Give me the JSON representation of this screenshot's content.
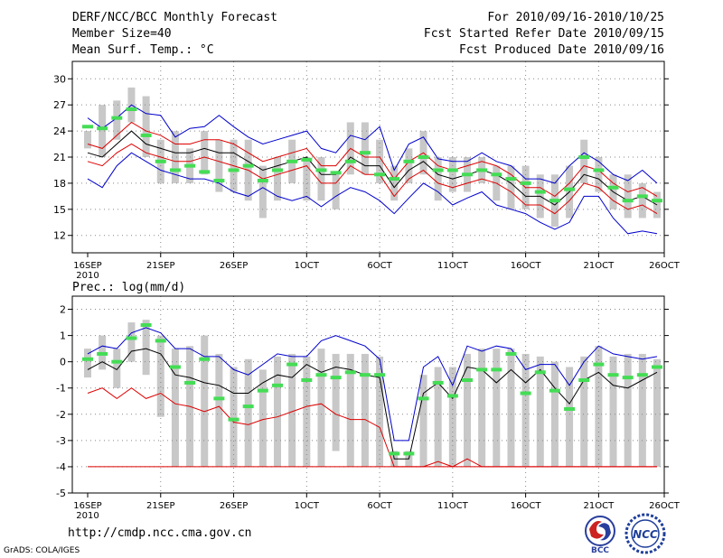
{
  "header": {
    "title": "DERF/NCC/BCC Monthly Forecast",
    "member_size": "Member Size=40",
    "variable": "Mean Surf. Temp.: °C",
    "forecast_period": "For 2010/09/16-2010/10/25",
    "started_refer": "Fcst Started Refer Date 2010/09/15",
    "produced": "Fcst Produced Date 2010/09/16"
  },
  "footer": {
    "url": "http://cmdp.ncc.cma.gov.cn",
    "credit": "GrADS: COLA/IGES"
  },
  "logos": {
    "bcc": "BCC",
    "ncc": "NCC"
  },
  "colors": {
    "upper": "#0000cc",
    "lower": "#dd0000",
    "mean": "#000000",
    "inner": "#dd0000",
    "obs": "#44dd55",
    "box": "#c8c8c8"
  },
  "chart_data": [
    {
      "type": "line",
      "title": "Mean Surf. Temp.: °C",
      "ylim": [
        10,
        32
      ],
      "yticks": [
        12,
        15,
        18,
        21,
        24,
        27,
        30
      ],
      "xlim": [
        0,
        39
      ],
      "xticks": [
        {
          "i": 0,
          "label": "16SEP",
          "sub": "2010"
        },
        {
          "i": 5,
          "label": "21SEP",
          "sub": ""
        },
        {
          "i": 10,
          "label": "26SEP",
          "sub": ""
        },
        {
          "i": 15,
          "label": "1OCT",
          "sub": ""
        },
        {
          "i": 20,
          "label": "6OCT",
          "sub": ""
        },
        {
          "i": 25,
          "label": "11OCT",
          "sub": ""
        },
        {
          "i": 30,
          "label": "16OCT",
          "sub": ""
        },
        {
          "i": 35,
          "label": "21OCT",
          "sub": ""
        },
        {
          "i": 40,
          "label": "26OCT",
          "sub": ""
        }
      ],
      "series": [
        {
          "name": "ensemble max",
          "values": [
            18.5,
            17.5,
            20,
            21.5,
            20.5,
            19.5,
            19,
            18.5,
            18.5,
            18,
            17,
            16.5,
            17.5,
            16.5,
            16,
            16.5,
            15.3,
            16.5,
            17.5,
            17,
            16,
            14.5,
            16.3,
            18,
            17,
            15.5,
            16.3,
            17,
            15.5,
            15,
            14.5,
            13.5,
            12.7,
            13.5,
            16.5,
            16.5,
            14,
            12.2,
            12.5,
            12.2
          ]
        },
        {
          "name": "ensemble min",
          "values": [
            25.5,
            24.3,
            25.5,
            27,
            26,
            25.8,
            23.3,
            24.3,
            24.5,
            25.8,
            24.5,
            23.3,
            22.5,
            23,
            23.5,
            24,
            22,
            21.5,
            23.5,
            23,
            24.5,
            19.5,
            22.5,
            23.3,
            20.8,
            20.5,
            20.5,
            21.5,
            20.5,
            20,
            18.5,
            18.5,
            18,
            20,
            21.5,
            20.5,
            19,
            18.3,
            19.5,
            18
          ]
        },
        {
          "name": "mean",
          "values": [
            21.5,
            21,
            22.5,
            24,
            22.5,
            22,
            21.5,
            21.5,
            22,
            21.5,
            21.5,
            20.5,
            19.5,
            20,
            20.5,
            21,
            19,
            19,
            21,
            20,
            20,
            17.5,
            19.5,
            20.5,
            19,
            18.5,
            19,
            19.5,
            19,
            18,
            16.5,
            16.5,
            15.5,
            17,
            19,
            18.5,
            17,
            16,
            16.5,
            15.5
          ]
        },
        {
          "name": "mean+sd",
          "values": [
            22.5,
            22,
            23.5,
            25,
            24,
            23.5,
            22.5,
            22.5,
            23,
            23,
            22.5,
            21.5,
            20.5,
            21,
            21.5,
            22,
            20,
            20,
            22,
            21,
            21,
            18.5,
            20.5,
            21.5,
            20,
            19.5,
            20,
            20.5,
            20,
            19,
            17.5,
            17.5,
            16.5,
            18,
            20,
            19.5,
            18,
            17,
            17.5,
            16.5
          ]
        },
        {
          "name": "mean-sd",
          "values": [
            20.5,
            20,
            21.5,
            22.5,
            21.5,
            21,
            20.5,
            20.5,
            21,
            20.5,
            20,
            19.5,
            18.5,
            19,
            19.5,
            20,
            18,
            18,
            20,
            19,
            19,
            16.5,
            18.5,
            19.5,
            18,
            17.5,
            18,
            18.5,
            18,
            17,
            15.5,
            15.5,
            14.5,
            16,
            18,
            17.5,
            16,
            15,
            15.5,
            14.5
          ]
        }
      ],
      "boxes": [
        [
          24,
          22
        ],
        [
          27,
          21
        ],
        [
          27.5,
          23
        ],
        [
          29,
          25
        ],
        [
          28,
          21
        ],
        [
          23,
          18
        ],
        [
          24,
          18
        ],
        [
          22,
          18
        ],
        [
          24,
          19
        ],
        [
          23,
          17
        ],
        [
          23,
          17
        ],
        [
          23,
          16
        ],
        [
          20,
          14
        ],
        [
          21,
          16
        ],
        [
          23,
          18
        ],
        [
          21,
          16
        ],
        [
          21,
          16
        ],
        [
          19,
          15
        ],
        [
          25,
          19
        ],
        [
          25,
          19
        ],
        [
          23,
          18
        ],
        [
          20,
          16
        ],
        [
          22,
          18
        ],
        [
          24,
          19
        ],
        [
          21,
          16
        ],
        [
          21,
          17
        ],
        [
          21,
          17
        ],
        [
          21,
          18
        ],
        [
          20,
          16
        ],
        [
          20,
          15
        ],
        [
          20,
          15
        ],
        [
          19,
          14
        ],
        [
          19,
          13
        ],
        [
          20,
          14
        ],
        [
          23,
          18
        ],
        [
          21,
          17
        ],
        [
          19,
          15
        ],
        [
          19,
          14
        ],
        [
          18,
          14
        ],
        [
          17,
          14
        ]
      ],
      "observed": [
        24.5,
        24.3,
        25.5,
        26.5,
        23.5,
        20.5,
        19.5,
        20,
        19.3,
        18.3,
        19.5,
        20,
        18.3,
        19.5,
        20.5,
        20.7,
        19.5,
        19.2,
        20.5,
        21.5,
        19,
        18.5,
        20.5,
        21,
        19.5,
        19.5,
        19,
        19.5,
        19,
        18.5,
        18,
        17,
        16,
        17.3,
        21,
        19.5,
        17.5,
        16,
        16.5,
        16
      ]
    },
    {
      "type": "line",
      "title": "Prec.: log(mm/d)",
      "ylim": [
        -5,
        2.5
      ],
      "yticks": [
        -5,
        -4,
        -3,
        -2,
        -1,
        0,
        1,
        2
      ],
      "xlim": [
        0,
        39
      ],
      "xticks": [
        {
          "i": 0,
          "label": "16SEP",
          "sub": "2010"
        },
        {
          "i": 5,
          "label": "21SEP",
          "sub": ""
        },
        {
          "i": 10,
          "label": "26SEP",
          "sub": ""
        },
        {
          "i": 15,
          "label": "1OCT",
          "sub": ""
        },
        {
          "i": 20,
          "label": "6OCT",
          "sub": ""
        },
        {
          "i": 25,
          "label": "11OCT",
          "sub": ""
        },
        {
          "i": 30,
          "label": "16OCT",
          "sub": ""
        },
        {
          "i": 35,
          "label": "21OCT",
          "sub": ""
        },
        {
          "i": 40,
          "label": "26OCT",
          "sub": ""
        }
      ],
      "series": [
        {
          "name": "upper",
          "values": [
            0.3,
            0.6,
            0.5,
            1.1,
            1.3,
            1.1,
            0.5,
            0.5,
            0.2,
            0.2,
            -0.3,
            -0.5,
            -0.1,
            0.3,
            0.2,
            0.2,
            0.8,
            1.0,
            0.8,
            0.6,
            0.1,
            -3.0,
            -3.0,
            -0.2,
            0.2,
            -0.9,
            0.6,
            0.4,
            0.6,
            0.5,
            -0.3,
            -0.1,
            -0.1,
            -0.9,
            0.0,
            0.6,
            0.3,
            0.2,
            0.1,
            0.2
          ]
        },
        {
          "name": "mean",
          "values": [
            -0.3,
            0.0,
            -0.3,
            0.4,
            0.5,
            0.3,
            -0.5,
            -0.6,
            -0.8,
            -0.9,
            -1.2,
            -1.2,
            -0.8,
            -0.5,
            -0.6,
            -0.1,
            -0.4,
            -0.2,
            -0.3,
            -0.5,
            -0.6,
            -3.7,
            -3.7,
            -1.2,
            -0.8,
            -1.4,
            -0.2,
            -0.3,
            -0.8,
            -0.3,
            -0.8,
            -0.3,
            -1.0,
            -1.6,
            -0.7,
            -0.4,
            -0.9,
            -1.0,
            -0.7,
            -0.4
          ]
        },
        {
          "name": "lower",
          "values": [
            -1.2,
            -1.0,
            -1.4,
            -1.0,
            -1.4,
            -1.2,
            -1.6,
            -1.7,
            -1.9,
            -1.7,
            -2.3,
            -2.4,
            -2.2,
            -2.1,
            -1.9,
            -1.7,
            -1.6,
            -2.0,
            -2.2,
            -2.2,
            -2.5,
            -4.0,
            -4.0,
            -4.0,
            -3.8,
            -4.0,
            -3.7,
            -4.0,
            -4.0,
            -4.0,
            -4.0,
            -4.0,
            -4.0,
            -4.0,
            -4.0,
            -4.0,
            -4.0,
            -4.0,
            -4.0,
            -4.0
          ]
        },
        {
          "name": "floor",
          "values": [
            -4.0,
            -4.0,
            -4.0,
            -4.0,
            -4.0,
            -4.0,
            -4.0,
            -4.0,
            -4.0,
            -4.0,
            -4.0,
            -4.0,
            -4.0,
            -4.0,
            -4.0,
            -4.0,
            -4.0,
            -4.0,
            -4.0,
            -4.0,
            -4.0,
            -4.0,
            -4.0,
            -4.0,
            -4.0,
            -4.0,
            -4.0,
            -4.0,
            -4.0,
            -4.0,
            -4.0,
            -4.0,
            -4.0,
            -4.0,
            -4.0,
            -4.0,
            -4.0,
            -4.0,
            -4.0,
            -4.0
          ]
        }
      ],
      "boxes": [
        [
          0.5,
          -0.6
        ],
        [
          1.0,
          -0.3
        ],
        [
          0.5,
          -1.0
        ],
        [
          1.5,
          0.0
        ],
        [
          1.6,
          -0.5
        ],
        [
          1.0,
          -2.1
        ],
        [
          0.5,
          -4.0
        ],
        [
          0.6,
          -4.0
        ],
        [
          1.0,
          -4.0
        ],
        [
          0.3,
          -4.0
        ],
        [
          -0.2,
          -4.0
        ],
        [
          0.1,
          -4.0
        ],
        [
          -0.3,
          -4.0
        ],
        [
          0.2,
          -4.0
        ],
        [
          0.3,
          -4.0
        ],
        [
          0.2,
          -4.0
        ],
        [
          0.5,
          -4.0
        ],
        [
          0.3,
          -3.4
        ],
        [
          0.3,
          -4.0
        ],
        [
          0.3,
          -4.0
        ],
        [
          0.2,
          -4.0
        ],
        [
          -3.4,
          -4.0
        ],
        [
          -3.4,
          -4.0
        ],
        [
          -0.5,
          -4.0
        ],
        [
          -0.2,
          -4.0
        ],
        [
          -0.2,
          -4.0
        ],
        [
          0.3,
          -4.0
        ],
        [
          0.5,
          -4.0
        ],
        [
          0.5,
          -4.0
        ],
        [
          0.5,
          -4.0
        ],
        [
          0.3,
          -4.0
        ],
        [
          0.2,
          -4.0
        ],
        [
          0.0,
          -4.0
        ],
        [
          -0.2,
          -4.0
        ],
        [
          0.2,
          -4.0
        ],
        [
          0.6,
          -4.0
        ],
        [
          0.2,
          -4.0
        ],
        [
          0.3,
          -4.0
        ],
        [
          0.3,
          -4.0
        ],
        [
          0.1,
          -4.0
        ]
      ],
      "observed": [
        0.1,
        0.3,
        0.0,
        0.9,
        1.4,
        0.8,
        -0.2,
        -0.8,
        0.1,
        -1.4,
        -2.2,
        -1.7,
        -1.1,
        -0.9,
        -0.1,
        -0.7,
        -0.5,
        -0.6,
        -0.4,
        -0.5,
        -0.5,
        -3.5,
        -3.5,
        -1.4,
        -0.8,
        -1.3,
        -0.7,
        -0.3,
        -0.3,
        0.3,
        -1.2,
        -0.4,
        -1.1,
        -1.8,
        -0.7,
        -0.1,
        -0.5,
        -0.6,
        -0.5,
        -0.2
      ]
    }
  ]
}
